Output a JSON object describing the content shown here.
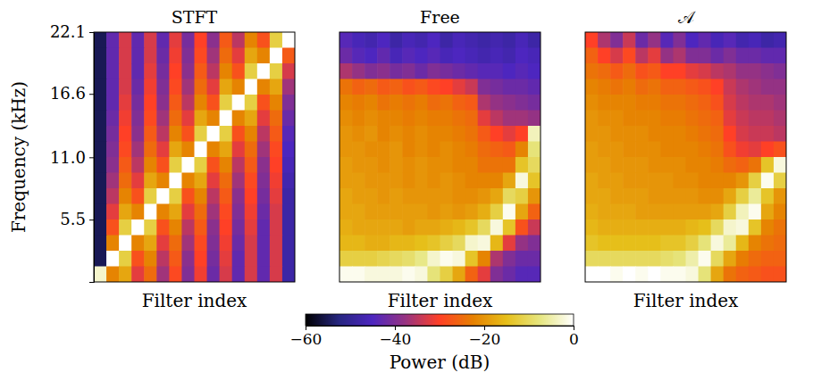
{
  "chart_data": [
    {
      "type": "heatmap",
      "title": "STFT",
      "x_label": "Filter index",
      "y_label": "Frequency (kHz)",
      "ylim": [
        0,
        22.05
      ],
      "yticks": [
        5.5,
        {
          "value": 11.0,
          "label": "11.0"
        },
        16.6,
        {
          "value": 22.05,
          "label": "22.1"
        }
      ],
      "tick_labels": "y",
      "cells": [
        [
          -55,
          -43,
          -33,
          -43,
          -33,
          -43,
          -32,
          -41,
          -30,
          -39,
          -27,
          -35,
          -22,
          -28,
          -12,
          0
        ],
        [
          -55,
          -43,
          -33,
          -43,
          -33,
          -42,
          -31,
          -40,
          -29,
          -37,
          -25,
          -32,
          -18,
          -22,
          0,
          -27
        ],
        [
          -55,
          -43,
          -33,
          -43,
          -32,
          -41,
          -30,
          -39,
          -27,
          -35,
          -22,
          -28,
          -12,
          0,
          -12,
          -33
        ],
        [
          -55,
          -43,
          -33,
          -42,
          -31,
          -40,
          -29,
          -37,
          -25,
          -32,
          -18,
          -22,
          0,
          -22,
          -18,
          -37
        ],
        [
          -55,
          -43,
          -32,
          -41,
          -30,
          -39,
          -27,
          -35,
          -22,
          -28,
          -12,
          0,
          -12,
          -28,
          -22,
          -40
        ],
        [
          -55,
          -42,
          -31,
          -40,
          -29,
          -37,
          -25,
          -32,
          -18,
          -22,
          0,
          -22,
          -18,
          -32,
          -25,
          -42
        ],
        [
          -55,
          -41,
          -30,
          -39,
          -27,
          -35,
          -22,
          -28,
          -12,
          0,
          -12,
          -28,
          -22,
          -35,
          -27,
          -44
        ],
        [
          -55,
          -40,
          -29,
          -37,
          -25,
          -32,
          -18,
          -22,
          0,
          -22,
          -18,
          -32,
          -25,
          -37,
          -29,
          -45
        ],
        [
          -55,
          -39,
          -27,
          -35,
          -22,
          -28,
          -12,
          0,
          -12,
          -28,
          -22,
          -35,
          -27,
          -39,
          -30,
          -46
        ],
        [
          -55,
          -37,
          -25,
          -32,
          -18,
          -22,
          0,
          -22,
          -18,
          -32,
          -25,
          -37,
          -29,
          -40,
          -31,
          -47
        ],
        [
          -55,
          -35,
          -22,
          -28,
          -12,
          0,
          -12,
          -28,
          -22,
          -35,
          -27,
          -39,
          -30,
          -41,
          -32,
          -48
        ],
        [
          -55,
          -32,
          -18,
          -22,
          0,
          -22,
          -18,
          -32,
          -25,
          -37,
          -29,
          -40,
          -31,
          -42,
          -33,
          -48
        ],
        [
          -55,
          -28,
          -12,
          0,
          -12,
          -28,
          -22,
          -35,
          -27,
          -39,
          -30,
          -41,
          -32,
          -43,
          -33,
          -48
        ],
        [
          -55,
          -22,
          0,
          -22,
          -18,
          -32,
          -25,
          -37,
          -29,
          -40,
          -31,
          -42,
          -33,
          -43,
          -33,
          -48
        ],
        [
          -55,
          0,
          -12,
          -28,
          -22,
          -35,
          -27,
          -39,
          -30,
          -41,
          -32,
          -43,
          -33,
          -43,
          -33,
          -48
        ],
        [
          -3,
          -22,
          -18,
          -32,
          -25,
          -37,
          -29,
          -40,
          -31,
          -42,
          -33,
          -43,
          -33,
          -43,
          -33,
          -48
        ]
      ]
    },
    {
      "type": "heatmap",
      "title": "Free",
      "x_label": "Filter index",
      "ylim": [
        0,
        22.05
      ],
      "tick_labels": false,
      "cells": [
        [
          -44,
          -46,
          -47,
          -45,
          -48,
          -46,
          -47,
          -45,
          -48,
          -46,
          -47,
          -48,
          -47,
          -48,
          -46,
          -48
        ],
        [
          -42,
          -44,
          -45,
          -43,
          -46,
          -44,
          -45,
          -44,
          -46,
          -45,
          -46,
          -47,
          -46,
          -47,
          -45,
          -46
        ],
        [
          -36,
          -38,
          -40,
          -39,
          -41,
          -40,
          -42,
          -40,
          -41,
          -42,
          -43,
          -44,
          -44,
          -45,
          -44,
          -45
        ],
        [
          -24,
          -26,
          -25,
          -27,
          -26,
          -28,
          -27,
          -29,
          -30,
          -32,
          -34,
          -40,
          -41,
          -42,
          -42,
          -43
        ],
        [
          -22,
          -23,
          -22,
          -24,
          -23,
          -24,
          -23,
          -25,
          -24,
          -26,
          -27,
          -36,
          -38,
          -39,
          -40,
          -41
        ],
        [
          -21,
          -22,
          -21,
          -22,
          -22,
          -23,
          -22,
          -23,
          -23,
          -24,
          -25,
          -32,
          -35,
          -37,
          -37,
          -38
        ],
        [
          -20,
          -21,
          -20,
          -22,
          -21,
          -22,
          -21,
          -22,
          -22,
          -23,
          -24,
          -27,
          -30,
          -32,
          -30,
          -4
        ],
        [
          -20,
          -20,
          -21,
          -21,
          -20,
          -22,
          -21,
          -22,
          -21,
          -22,
          -23,
          -25,
          -26,
          -27,
          -22,
          -8
        ],
        [
          -19,
          -20,
          -20,
          -21,
          -20,
          -21,
          -20,
          -21,
          -21,
          -22,
          -22,
          -24,
          -24,
          -24,
          -14,
          -10
        ],
        [
          -19,
          -19,
          -20,
          -20,
          -20,
          -21,
          -20,
          -21,
          -20,
          -21,
          -22,
          -22,
          -22,
          -18,
          -2,
          -14
        ],
        [
          -18,
          -19,
          -19,
          -20,
          -19,
          -20,
          -20,
          -20,
          -20,
          -21,
          -21,
          -20,
          -18,
          -10,
          -12,
          -20
        ],
        [
          -18,
          -18,
          -19,
          -19,
          -19,
          -19,
          -19,
          -20,
          -19,
          -20,
          -19,
          -17,
          -12,
          -1,
          -18,
          -26
        ],
        [
          -17,
          -18,
          -18,
          -18,
          -18,
          -19,
          -18,
          -18,
          -17,
          -16,
          -14,
          -10,
          -2,
          -14,
          -28,
          -34
        ],
        [
          -16,
          -16,
          -17,
          -17,
          -16,
          -16,
          -15,
          -14,
          -12,
          -10,
          -3,
          -2,
          -16,
          -32,
          -38,
          -40
        ],
        [
          -12,
          -12,
          -12,
          -11,
          -10,
          -9,
          -7,
          -3,
          -1,
          -2,
          -14,
          -22,
          -36,
          -40,
          -42,
          -42
        ],
        [
          -1,
          -1,
          -2,
          -2,
          -2,
          -1,
          -2,
          -8,
          -12,
          -18,
          -26,
          -32,
          -40,
          -42,
          -44,
          -44
        ]
      ]
    },
    {
      "type": "heatmap",
      "title": "𝒜",
      "x_label": "Filter index",
      "ylim": [
        0,
        22.05
      ],
      "tick_labels": false,
      "cells": [
        [
          -30,
          -36,
          -40,
          -34,
          -42,
          -38,
          -44,
          -40,
          -45,
          -43,
          -46,
          -44,
          -47,
          -46,
          -48,
          -47
        ],
        [
          -26,
          -30,
          -33,
          -29,
          -35,
          -32,
          -38,
          -36,
          -40,
          -40,
          -42,
          -40,
          -42,
          -42,
          -43,
          -43
        ],
        [
          -24,
          -25,
          -27,
          -25,
          -28,
          -27,
          -30,
          -30,
          -32,
          -33,
          -35,
          -36,
          -38,
          -38,
          -39,
          -40
        ],
        [
          -22,
          -23,
          -24,
          -23,
          -25,
          -24,
          -26,
          -26,
          -27,
          -28,
          -30,
          -34,
          -36,
          -37,
          -38,
          -38
        ],
        [
          -21,
          -22,
          -22,
          -22,
          -23,
          -23,
          -24,
          -24,
          -25,
          -26,
          -28,
          -33,
          -35,
          -36,
          -36,
          -37
        ],
        [
          -20,
          -21,
          -21,
          -22,
          -22,
          -22,
          -23,
          -23,
          -24,
          -25,
          -26,
          -32,
          -34,
          -35,
          -35,
          -36
        ],
        [
          -20,
          -20,
          -21,
          -21,
          -21,
          -22,
          -22,
          -22,
          -23,
          -24,
          -25,
          -30,
          -33,
          -34,
          -34,
          -35
        ],
        [
          -19,
          -20,
          -20,
          -21,
          -21,
          -21,
          -22,
          -22,
          -22,
          -23,
          -24,
          -28,
          -31,
          -32,
          -30,
          -28
        ],
        [
          -19,
          -19,
          -20,
          -20,
          -20,
          -21,
          -21,
          -21,
          -22,
          -22,
          -23,
          -25,
          -26,
          -24,
          -14,
          -2
        ],
        [
          -18,
          -19,
          -19,
          -20,
          -20,
          -20,
          -20,
          -21,
          -21,
          -22,
          -22,
          -22,
          -20,
          -12,
          -1,
          -12
        ],
        [
          -18,
          -18,
          -19,
          -19,
          -19,
          -20,
          -20,
          -20,
          -20,
          -21,
          -21,
          -18,
          -12,
          -6,
          -14,
          -20
        ],
        [
          -17,
          -18,
          -18,
          -18,
          -19,
          -19,
          -19,
          -19,
          -19,
          -19,
          -18,
          -12,
          -4,
          -1,
          -18,
          -22
        ],
        [
          -16,
          -17,
          -17,
          -17,
          -17,
          -17,
          -17,
          -17,
          -16,
          -15,
          -10,
          -3,
          -2,
          -14,
          -22,
          -24
        ],
        [
          -14,
          -15,
          -15,
          -15,
          -15,
          -15,
          -14,
          -14,
          -12,
          -8,
          -2,
          -6,
          -16,
          -22,
          -24,
          -25
        ],
        [
          -10,
          -10,
          -10,
          -10,
          -10,
          -10,
          -9,
          -8,
          -5,
          -1,
          -10,
          -18,
          -23,
          -25,
          -26,
          -26
        ],
        [
          0,
          0,
          -1,
          0,
          -1,
          0,
          -1,
          -1,
          -2,
          -8,
          -18,
          -24,
          -26,
          -27,
          -28,
          -28
        ]
      ]
    }
  ],
  "colorbar": {
    "label": "Power (dB)",
    "range": [
      -60,
      0
    ],
    "ticks": [
      {
        "value": -60,
        "label": "−60"
      },
      {
        "value": -40,
        "label": "−40"
      },
      {
        "value": -20,
        "label": "−20"
      },
      0
    ]
  }
}
